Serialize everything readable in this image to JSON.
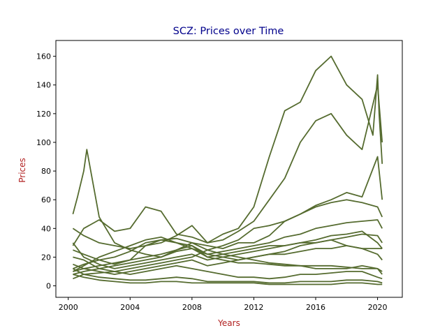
{
  "chart_data": {
    "type": "line",
    "title": "SCZ: Prices over Time",
    "xlabel": "Years",
    "ylabel": "Prices",
    "xlim": [
      1999.2,
      2021.6
    ],
    "ylim": [
      -8,
      171
    ],
    "x_ticks": [
      2000,
      2004,
      2008,
      2012,
      2016,
      2020
    ],
    "x_tick_labels": [
      "2000",
      "2004",
      "2008",
      "2012",
      "2016",
      "2020"
    ],
    "y_ticks": [
      0,
      20,
      40,
      60,
      80,
      100,
      120,
      140,
      160
    ],
    "y_tick_labels": [
      "0",
      "20",
      "40",
      "60",
      "80",
      "100",
      "120",
      "140",
      "160"
    ],
    "grid": false,
    "legend": false,
    "colors": {
      "line": "#556b2f",
      "title": "#00008b",
      "axis_label": "#b22222"
    },
    "series": [
      {
        "x": [
          2000.3,
          2001,
          2002,
          2003,
          2004,
          2005,
          2006,
          2007,
          2008,
          2009,
          2010,
          2011,
          2012,
          2013,
          2014,
          2015,
          2016,
          2017,
          2018,
          2019,
          2019.7,
          2020,
          2020.1,
          2020.3
        ],
        "values": [
          28,
          40,
          46,
          38,
          40,
          55,
          52,
          36,
          34,
          30,
          36,
          40,
          55,
          90,
          122,
          128,
          150,
          160,
          140,
          130,
          105,
          147,
          120,
          85
        ]
      },
      {
        "x": [
          2000.3,
          2001,
          2002,
          2003,
          2004,
          2005,
          2006,
          2007,
          2008,
          2009,
          2010,
          2011,
          2012,
          2013,
          2014,
          2015,
          2016,
          2017,
          2018,
          2019,
          2020,
          2020.3
        ],
        "values": [
          25,
          22,
          18,
          15,
          18,
          28,
          30,
          35,
          42,
          30,
          32,
          38,
          45,
          60,
          75,
          100,
          115,
          120,
          105,
          95,
          140,
          100
        ]
      },
      {
        "x": [
          2000.3,
          2000.6,
          2001,
          2001.2,
          2002,
          2003,
          2004,
          2005,
          2006,
          2007,
          2008,
          2009,
          2010,
          2011,
          2012,
          2013,
          2014,
          2015,
          2016,
          2017,
          2018,
          2019,
          2020,
          2020.3
        ],
        "values": [
          50,
          62,
          80,
          95,
          48,
          30,
          25,
          22,
          20,
          25,
          30,
          28,
          26,
          30,
          30,
          35,
          45,
          50,
          56,
          60,
          65,
          62,
          90,
          60
        ]
      },
      {
        "x": [
          2000.3,
          2001,
          2002,
          2003,
          2004,
          2005,
          2006,
          2007,
          2008,
          2009,
          2010,
          2011,
          2012,
          2013,
          2014,
          2015,
          2016,
          2017,
          2018,
          2019,
          2020,
          2020.3
        ],
        "values": [
          12,
          15,
          18,
          20,
          24,
          30,
          32,
          33,
          30,
          25,
          28,
          32,
          40,
          42,
          45,
          50,
          55,
          58,
          60,
          58,
          55,
          48
        ]
      },
      {
        "x": [
          2000.3,
          2001,
          2002,
          2003,
          2004,
          2005,
          2006,
          2007,
          2008,
          2009,
          2010,
          2011,
          2012,
          2013,
          2014,
          2015,
          2016,
          2017,
          2018,
          2019,
          2020,
          2020.3
        ],
        "values": [
          10,
          12,
          14,
          16,
          18,
          20,
          22,
          25,
          28,
          22,
          24,
          26,
          28,
          30,
          34,
          36,
          40,
          42,
          44,
          45,
          46,
          40
        ]
      },
      {
        "x": [
          2000.3,
          2001,
          2002,
          2003,
          2004,
          2005,
          2006,
          2007,
          2008,
          2009,
          2010,
          2011,
          2012,
          2013,
          2014,
          2015,
          2016,
          2017,
          2018,
          2019,
          2020,
          2020.3
        ],
        "values": [
          8,
          10,
          12,
          14,
          16,
          18,
          20,
          24,
          26,
          20,
          22,
          24,
          26,
          28,
          28,
          30,
          32,
          35,
          36,
          38,
          30,
          26
        ]
      },
      {
        "x": [
          2000.3,
          2001,
          2002,
          2003,
          2004,
          2005,
          2006,
          2007,
          2008,
          2009,
          2010,
          2011,
          2012,
          2013,
          2014,
          2015,
          2016,
          2017,
          2018,
          2019,
          2020,
          2020.3
        ],
        "values": [
          30,
          20,
          15,
          12,
          14,
          16,
          18,
          20,
          22,
          18,
          20,
          22,
          24,
          26,
          28,
          30,
          30,
          32,
          34,
          36,
          35,
          30
        ]
      },
      {
        "x": [
          2000.3,
          2001,
          2002,
          2003,
          2004,
          2005,
          2006,
          2007,
          2008,
          2009,
          2010,
          2011,
          2012,
          2013,
          2014,
          2015,
          2016,
          2017,
          2018,
          2019,
          2020,
          2020.3
        ],
        "values": [
          15,
          12,
          10,
          8,
          10,
          12,
          14,
          16,
          18,
          14,
          16,
          18,
          20,
          22,
          22,
          24,
          26,
          26,
          28,
          26,
          22,
          18
        ]
      },
      {
        "x": [
          2000.3,
          2001,
          2002,
          2003,
          2004,
          2005,
          2006,
          2007,
          2008,
          2009,
          2010,
          2011,
          2012,
          2013,
          2014,
          2015,
          2016,
          2017,
          2018,
          2019,
          2020,
          2020.3
        ],
        "values": [
          5,
          8,
          9,
          10,
          12,
          14,
          16,
          18,
          20,
          25,
          22,
          20,
          18,
          16,
          15,
          14,
          14,
          14,
          13,
          12,
          12,
          10
        ]
      },
      {
        "x": [
          2000.3,
          2001,
          2002,
          2003,
          2004,
          2005,
          2006,
          2007,
          2008,
          2009,
          2010,
          2011,
          2012,
          2013,
          2014,
          2015,
          2016,
          2017,
          2018,
          2019,
          2020,
          2020.3
        ],
        "values": [
          20,
          18,
          12,
          10,
          8,
          10,
          12,
          14,
          12,
          10,
          8,
          6,
          6,
          5,
          6,
          8,
          8,
          9,
          10,
          10,
          6,
          5
        ]
      },
      {
        "x": [
          2000.3,
          2001,
          2002,
          2003,
          2004,
          2005,
          2006,
          2007,
          2008,
          2009,
          2010,
          2011,
          2012,
          2013,
          2014,
          2015,
          2016,
          2017,
          2018,
          2019,
          2020,
          2020.3
        ],
        "values": [
          12,
          8,
          6,
          5,
          4,
          4,
          5,
          6,
          5,
          3,
          3,
          3,
          3,
          2,
          2,
          3,
          3,
          3,
          4,
          4,
          3,
          2
        ]
      },
      {
        "x": [
          2000.3,
          2001,
          2002,
          2003,
          2004,
          2005,
          2006,
          2007,
          2008,
          2009,
          2010,
          2011,
          2012,
          2013,
          2014,
          2015,
          2016,
          2017,
          2018,
          2019,
          2020,
          2020.3
        ],
        "values": [
          8,
          6,
          4,
          3,
          2,
          2,
          3,
          3,
          2,
          2,
          2,
          2,
          2,
          1,
          1,
          1,
          1,
          1,
          2,
          2,
          1,
          1
        ]
      },
      {
        "x": [
          2000.3,
          2001,
          2002,
          2003,
          2004,
          2005,
          2006,
          2007,
          2008,
          2009,
          2010,
          2011,
          2012,
          2013,
          2014,
          2015,
          2016,
          2017,
          2018,
          2019,
          2020,
          2020.3
        ],
        "values": [
          40,
          35,
          30,
          28,
          26,
          28,
          32,
          30,
          28,
          20,
          18,
          16,
          16,
          15,
          14,
          14,
          12,
          12,
          12,
          14,
          12,
          8
        ]
      },
      {
        "x": [
          2000.3,
          2001,
          2002,
          2003,
          2004,
          2005,
          2006,
          2007,
          2008,
          2009,
          2010,
          2011,
          2012,
          2013,
          2014,
          2015,
          2016,
          2017,
          2018,
          2019,
          2020,
          2020.3
        ],
        "values": [
          10,
          14,
          20,
          24,
          28,
          32,
          34,
          30,
          26,
          22,
          20,
          18,
          20,
          22,
          24,
          28,
          30,
          32,
          28,
          26,
          26,
          26
        ]
      }
    ]
  }
}
